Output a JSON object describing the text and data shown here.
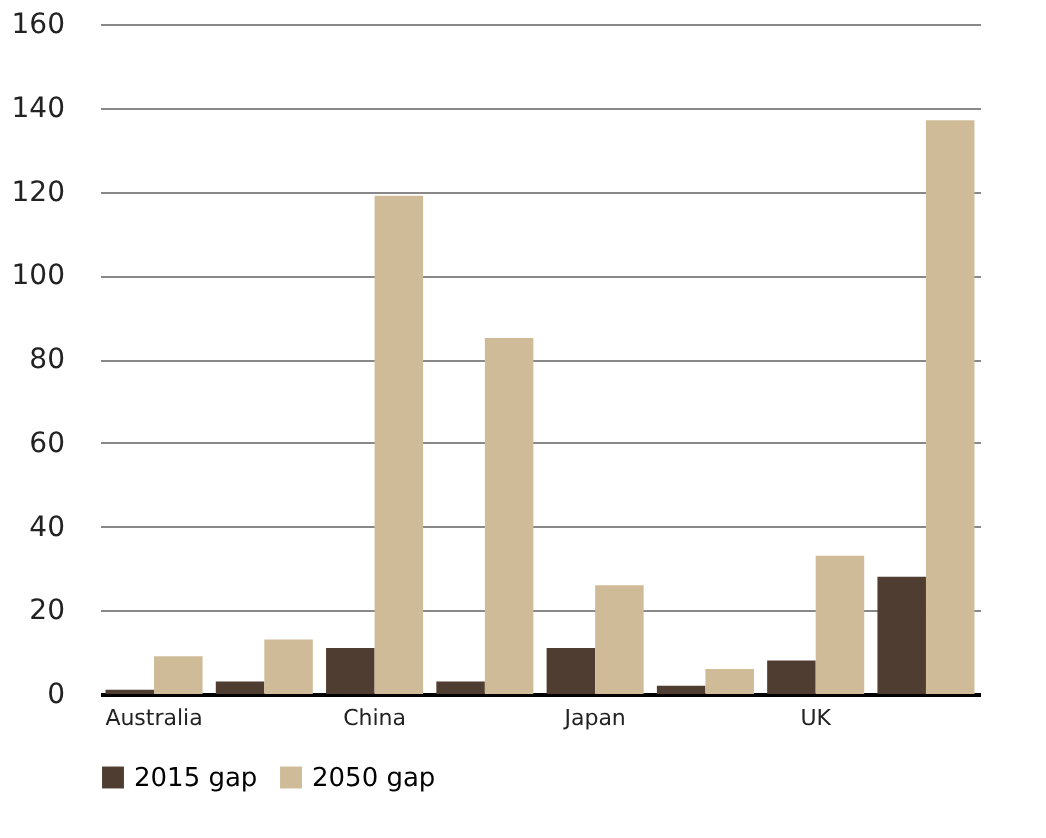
{
  "chart_data": {
    "type": "bar",
    "categories": [
      "Australia",
      null,
      "China",
      null,
      "Japan",
      null,
      "UK",
      null
    ],
    "series": [
      {
        "name": "2015 gap",
        "color": "#4e3d30",
        "values": [
          1,
          3,
          11,
          3,
          11,
          2,
          8,
          28
        ]
      },
      {
        "name": "2050 gap",
        "color": "#cfbb98",
        "values": [
          9,
          13,
          119,
          85,
          26,
          6,
          33,
          137
        ]
      }
    ],
    "ylim": [
      0,
      160
    ],
    "yticks": [
      0,
      20,
      40,
      60,
      80,
      100,
      120,
      140,
      160
    ],
    "grid": "y",
    "legend": "bottom"
  }
}
